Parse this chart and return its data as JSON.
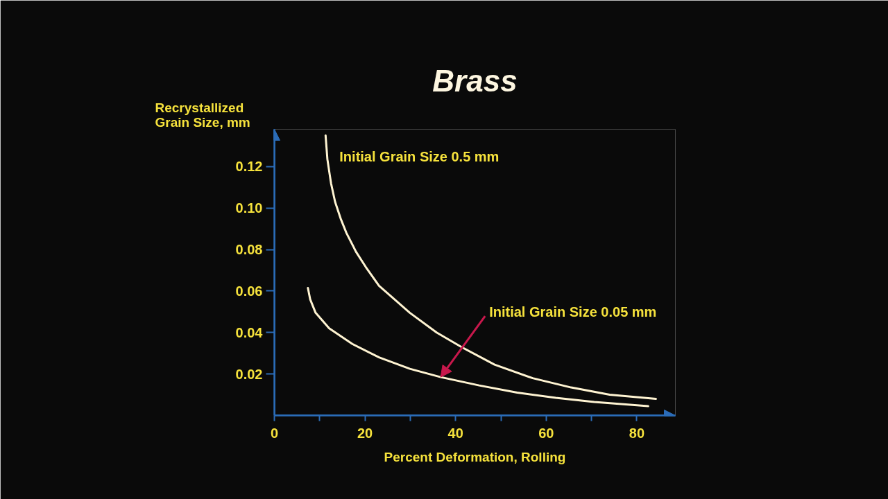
{
  "chart_data": {
    "type": "line",
    "title": "Brass",
    "xlabel": "Percent Deformation, Rolling",
    "ylabel": "Recrystallized Grain Size, mm",
    "xlim": [
      0,
      88.5
    ],
    "ylim": [
      0,
      0.138
    ],
    "xticks": [
      0,
      {
        "value": 10,
        "label": null
      },
      20,
      {
        "value": 30,
        "label": null
      },
      40,
      {
        "value": 50,
        "label": null
      },
      60,
      {
        "value": 70,
        "label": null
      },
      80
    ],
    "yticks": [
      0.02,
      0.04,
      0.06,
      0.08,
      {
        "value": 0.1,
        "label": "0.10"
      },
      0.12
    ],
    "grid": false,
    "line_style": "solid",
    "series": [
      {
        "name": "Initial Grain Size 0.5 mm",
        "color": "#fff4d2",
        "x": [
          11.3,
          11.7,
          12.5,
          13.4,
          14.7,
          15.9,
          18,
          20.2,
          23.1,
          29.9,
          35.8,
          41.3,
          48.6,
          57,
          65.5,
          74,
          84.2
        ],
        "values": [
          0.135,
          0.1235,
          0.112,
          0.103,
          0.0945,
          0.088,
          0.079,
          0.0715,
          0.0625,
          0.0495,
          0.04,
          0.033,
          0.0245,
          0.018,
          0.0135,
          0.01,
          0.008
        ]
      },
      {
        "color": "#fff4d2",
        "x": [
          7.4,
          7.9,
          9.1,
          12.1,
          17.2,
          23.1,
          29.9,
          36.7,
          45.2,
          53.6,
          62.1,
          70.6,
          82.5
        ],
        "values": [
          0.0615,
          0.056,
          0.0495,
          0.042,
          0.0345,
          0.028,
          0.0225,
          0.0185,
          0.0145,
          0.011,
          0.0085,
          0.0065,
          0.0045
        ]
      }
    ],
    "annotations": [
      {
        "text": "Initial Grain Size 0.05 mm",
        "x": 36.7,
        "y": 0.0185
      }
    ]
  }
}
